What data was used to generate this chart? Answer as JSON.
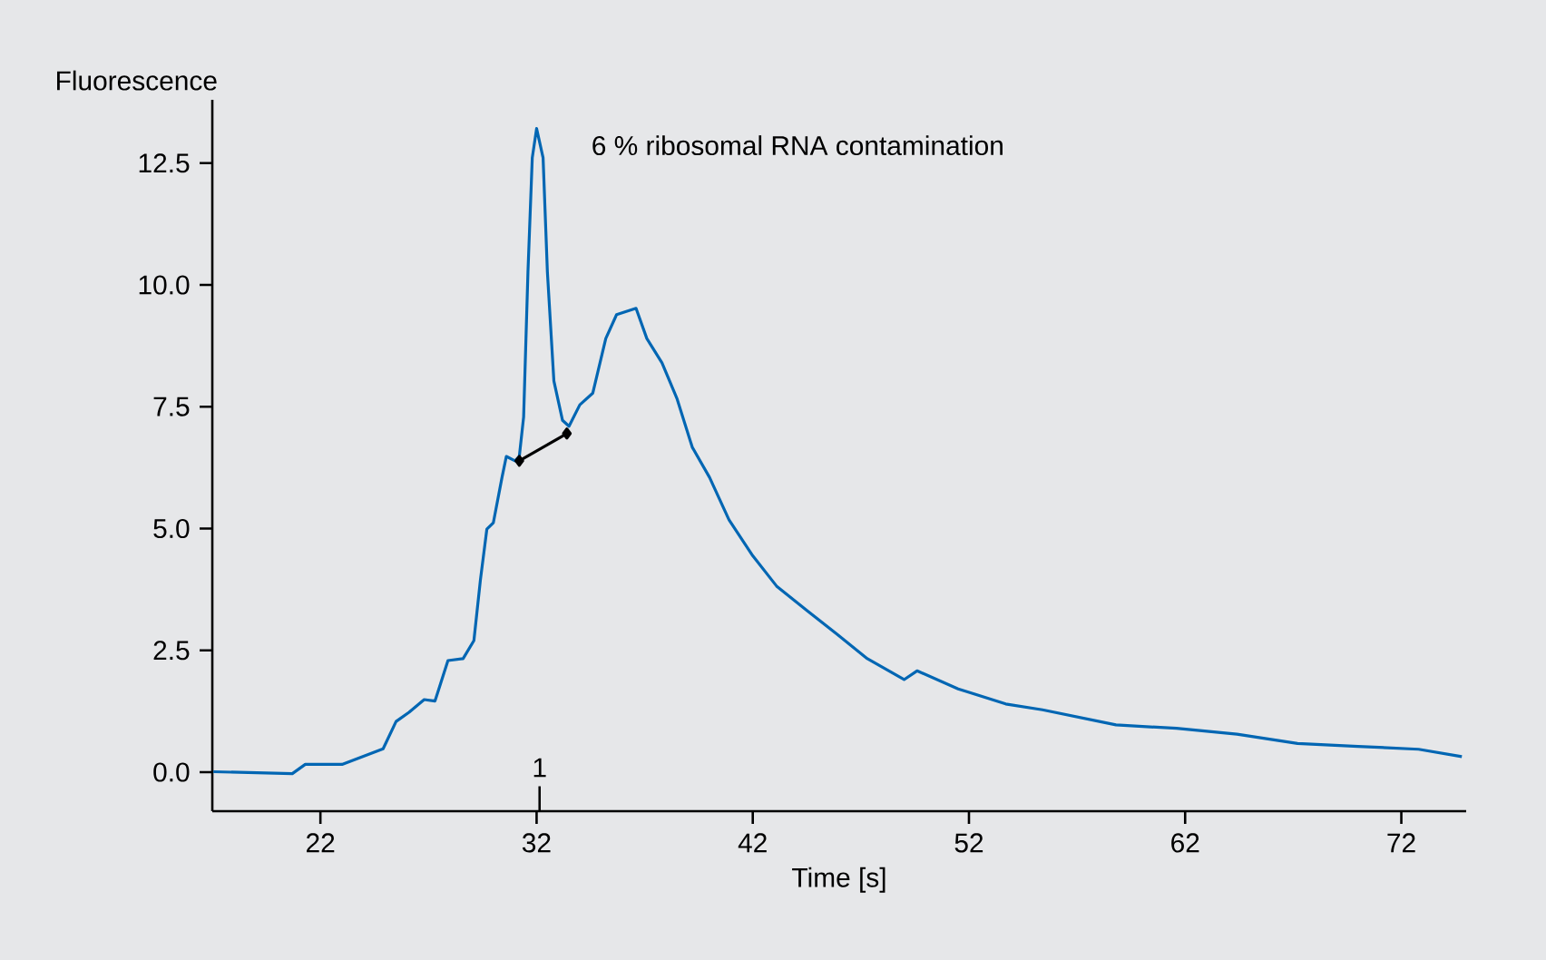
{
  "chart_data": {
    "type": "line",
    "xlabel": "Time [s]",
    "ylabel": "Fluorescence",
    "annotations": [
      "6 % ribosomal RNA contamination",
      "1"
    ],
    "xlim": [
      17,
      75
    ],
    "ylim": [
      -0.8,
      13.8
    ],
    "xticks": [
      22,
      32,
      42,
      52,
      62,
      72
    ],
    "yticks": [
      {
        "value": 0,
        "label": "0.0"
      },
      2.5,
      {
        "value": 5,
        "label": "5.0"
      },
      7.5,
      {
        "value": 10,
        "label": "10.0"
      },
      12.5
    ],
    "series": [
      {
        "color": "#0066b3",
        "marker": "none",
        "x": [
          17.05,
          20.7,
          21.3,
          23.0,
          24.9,
          25.5,
          26.1,
          26.8,
          27.3,
          27.9,
          28.6,
          29.1,
          29.4,
          29.7,
          30.0,
          30.4,
          30.6,
          31.0,
          31.2,
          31.4,
          31.6,
          31.8,
          32.0,
          32.3,
          32.5,
          32.8,
          33.2,
          33.5,
          34.0,
          34.6,
          35.2,
          35.7,
          36.6,
          37.1,
          37.8,
          38.5,
          39.2,
          40.0,
          40.9,
          42.0,
          43.1,
          44.5,
          45.9,
          47.3,
          49.0,
          49.6,
          51.5,
          53.7,
          55.4,
          58.8,
          61.6,
          64.4,
          67.2,
          70.0,
          72.8,
          74.8
        ],
        "values": [
          0.01,
          -0.03,
          0.16,
          0.16,
          0.48,
          1.04,
          1.23,
          1.49,
          1.46,
          2.29,
          2.33,
          2.7,
          3.94,
          4.99,
          5.12,
          6.05,
          6.48,
          6.39,
          6.48,
          7.29,
          10.26,
          12.61,
          13.21,
          12.61,
          10.26,
          8.03,
          7.22,
          7.1,
          7.54,
          7.78,
          8.9,
          9.39,
          9.52,
          8.9,
          8.4,
          7.66,
          6.67,
          6.05,
          5.18,
          4.44,
          3.82,
          3.32,
          2.83,
          2.33,
          1.9,
          2.08,
          1.71,
          1.4,
          1.28,
          0.97,
          0.9,
          0.78,
          0.59,
          0.53,
          0.47,
          0.32
        ]
      },
      {
        "color": "#000000",
        "marker": "diamond",
        "x": [
          31.2,
          33.4
        ],
        "values": [
          6.39,
          6.95
        ]
      }
    ]
  }
}
